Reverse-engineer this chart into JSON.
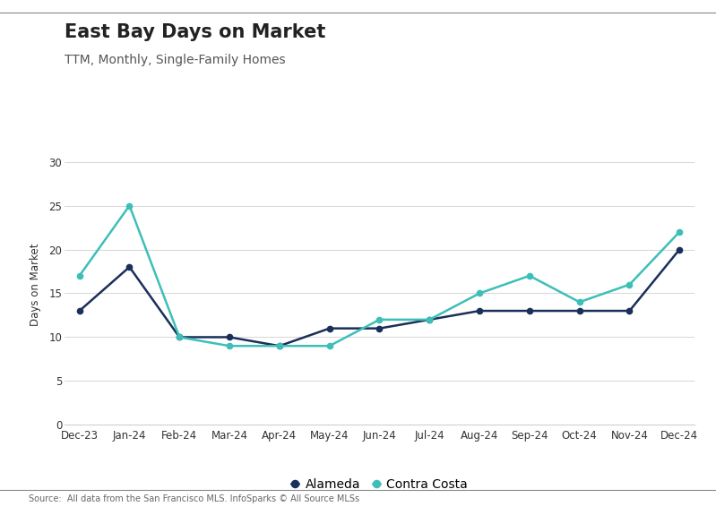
{
  "title": "East Bay Days on Market",
  "subtitle": "TTM, Monthly, Single-Family Homes",
  "ylabel": "Days on Market",
  "source": "Source:  All data from the San Francisco MLS. InfoSparks © All Source MLSs",
  "x_labels": [
    "Dec-23",
    "Jan-24",
    "Feb-24",
    "Mar-24",
    "Apr-24",
    "May-24",
    "Jun-24",
    "Jul-24",
    "Aug-24",
    "Sep-24",
    "Oct-24",
    "Nov-24",
    "Dec-24"
  ],
  "alameda": [
    13,
    18,
    10,
    10,
    9,
    11,
    11,
    12,
    13,
    13,
    13,
    13,
    20
  ],
  "contra_costa": [
    17,
    25,
    10,
    9,
    9,
    9,
    12,
    12,
    15,
    17,
    14,
    16,
    22
  ],
  "alameda_color": "#1a2f5a",
  "contra_costa_color": "#3dbfb8",
  "ylim": [
    0,
    32
  ],
  "yticks": [
    0,
    5,
    10,
    15,
    20,
    25,
    30
  ],
  "background_color": "#ffffff",
  "grid_color": "#d0d0d0",
  "title_fontsize": 15,
  "subtitle_fontsize": 10,
  "legend_fontsize": 10,
  "axis_fontsize": 8.5,
  "source_fontsize": 7
}
